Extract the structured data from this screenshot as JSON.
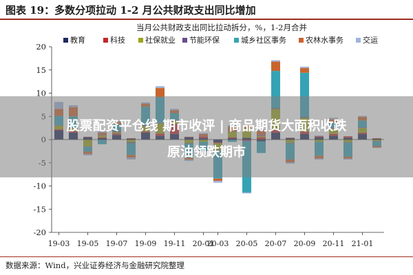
{
  "figure_title": "图表 19：多数分项拉动 1-2 月公共财政支出同比增加",
  "source_note": "数据来源：Wind，兴业证券经济与金融研究院整理",
  "overlay": {
    "line1": "股票配资平仓线 期市收评 | 商品期货大面积收跌",
    "line2": "原油领跌期市"
  },
  "chart_data": {
    "type": "bar",
    "stacked": true,
    "title": "当月公共财政支出同比拉动拆分，%，1-2月合并",
    "xlabel": "",
    "ylabel": "",
    "ylim": [
      -20,
      20
    ],
    "yticks": [
      -20,
      -15,
      -10,
      -5,
      0,
      5,
      10,
      15,
      20
    ],
    "grid": false,
    "legend_position": "top",
    "categories": [
      "19-03",
      "19-04",
      "19-05",
      "19-06",
      "19-07",
      "19-08",
      "19-09",
      "19-10",
      "19-11",
      "19-12",
      "20-01",
      "20-03",
      "20-04",
      "20-05",
      "20-06",
      "20-07",
      "20-08",
      "20-09",
      "20-10",
      "20-11",
      "20-12",
      "21-01",
      "21-02"
    ],
    "tick_labels": [
      "19-03",
      "19-05",
      "19-07",
      "19-09",
      "19-11",
      "20-01",
      "20-03",
      "20-05",
      "20-07",
      "20-09",
      "20-11",
      "21-01"
    ],
    "series": [
      {
        "name": "教育",
        "color": "#1f2a5c",
        "values": [
          2.0,
          1.5,
          0.5,
          0.3,
          1.0,
          0.2,
          1.5,
          0.8,
          1.2,
          0.5,
          0.3,
          -0.6,
          0.3,
          0.4,
          -0.4,
          1.5,
          0.3,
          1.2,
          0.5,
          0.8,
          0.4,
          1.2,
          0.2
        ]
      },
      {
        "name": "科技",
        "color": "#c0282d",
        "values": [
          0.2,
          0.3,
          0.1,
          0.2,
          0.3,
          0.1,
          0.2,
          0.5,
          2.2,
          0.1,
          0.3,
          -0.2,
          0.2,
          -0.2,
          0.5,
          0.6,
          0.1,
          0.5,
          0.2,
          0.4,
          0.3,
          0.3,
          0.1
        ]
      },
      {
        "name": "社保就业",
        "color": "#9aa51c",
        "values": [
          0.8,
          0.6,
          -1.5,
          0.4,
          0.3,
          -0.6,
          1.2,
          2.2,
          0.6,
          -0.8,
          -0.5,
          -1.5,
          1.2,
          2.0,
          0.3,
          4.5,
          -0.7,
          3.0,
          -0.5,
          1.2,
          -0.6,
          1.0,
          -0.3
        ]
      },
      {
        "name": "节能环保",
        "color": "#6b4b8f",
        "values": [
          0.1,
          0.1,
          -0.1,
          0.1,
          0.2,
          -0.2,
          0.2,
          0.1,
          0.2,
          -0.1,
          0.1,
          -0.1,
          0.1,
          -0.2,
          0.2,
          0.2,
          -0.1,
          0.2,
          0.1,
          0.2,
          -0.1,
          0.1,
          -0.1
        ]
      },
      {
        "name": "城乡社区事务",
        "color": "#35a3b5",
        "values": [
          2.0,
          2.5,
          -1.0,
          -1.0,
          1.5,
          -2.5,
          4.0,
          5.5,
          1.5,
          -3.0,
          -2.0,
          -6.0,
          -0.5,
          -11.0,
          -2.5,
          8.0,
          -3.5,
          9.5,
          -3.0,
          1.0,
          -3.0,
          1.5,
          -1.0
        ]
      },
      {
        "name": "农林水事务",
        "color": "#c9642d",
        "values": [
          1.5,
          2.0,
          -0.5,
          0.5,
          0.5,
          -0.6,
          0.6,
          2.0,
          0.6,
          -0.4,
          0.5,
          -0.5,
          1.0,
          0.6,
          0.9,
          2.0,
          -0.6,
          1.0,
          -0.6,
          0.8,
          -0.4,
          0.8,
          -0.3
        ]
      },
      {
        "name": "交运",
        "color": "#9fb4dc",
        "values": [
          1.5,
          0.4,
          -0.3,
          0.3,
          0.2,
          -0.4,
          0.3,
          0.4,
          0.3,
          -0.3,
          0.2,
          -0.4,
          0.3,
          -0.2,
          0.3,
          0.3,
          -0.3,
          0.3,
          -0.2,
          0.3,
          -0.2,
          0.2,
          -0.1
        ]
      }
    ]
  }
}
